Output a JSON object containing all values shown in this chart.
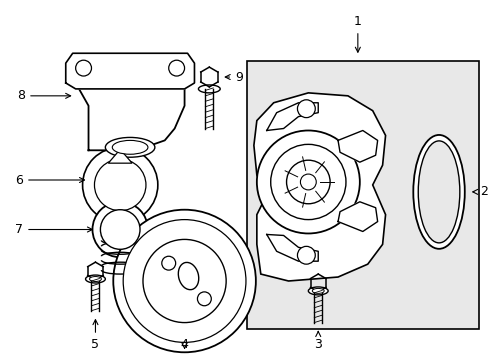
{
  "bg_color": "#ffffff",
  "label_color": "#000000",
  "line_color": "#000000",
  "box_bg": "#e8e8e8",
  "figsize": [
    4.89,
    3.6
  ],
  "dpi": 100
}
